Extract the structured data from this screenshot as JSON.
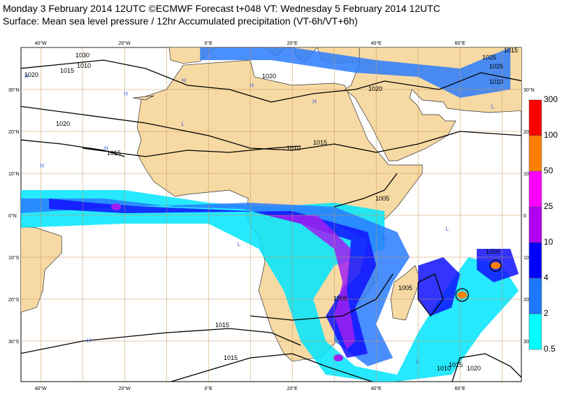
{
  "header": {
    "title": "Monday 3 February 2014 12UTC ©ECMWF Forecast t+048 VT: Wednesday 5 February 2014 12UTC",
    "subtitle": "Surface: Mean sea level pressure / 12hr Accumulated precipitation (VT-6h/VT+6h)"
  },
  "map": {
    "lon_labels": [
      "40°W",
      "20°W",
      "0°E",
      "20°E",
      "40°E",
      "60°E"
    ],
    "lat_labels_left": [
      "30°N",
      "20°N",
      "10°N",
      "0°N",
      "10°S",
      "20°S",
      "30°S"
    ],
    "lat_labels_right": [
      "30°N",
      "20",
      "10",
      "0",
      "10",
      "20",
      "30"
    ],
    "isobar_labels": [
      "1030",
      "1020",
      "1015",
      "1010",
      "1020",
      "1015",
      "1020",
      "1010",
      "1015",
      "1020",
      "1005",
      "1005",
      "1005",
      "1000",
      "1015",
      "1015",
      "1010",
      "1015",
      "1020",
      "1025",
      "1025",
      "1015",
      "1010"
    ],
    "pressure_centers": [
      "H",
      "H",
      "H",
      "H",
      "H",
      "L",
      "H",
      "H",
      "L",
      "L",
      "H",
      "L",
      "L",
      "H"
    ]
  },
  "colorbar": {
    "labels": [
      300,
      100,
      50,
      25,
      10,
      4,
      2,
      0.5
    ]
  }
}
